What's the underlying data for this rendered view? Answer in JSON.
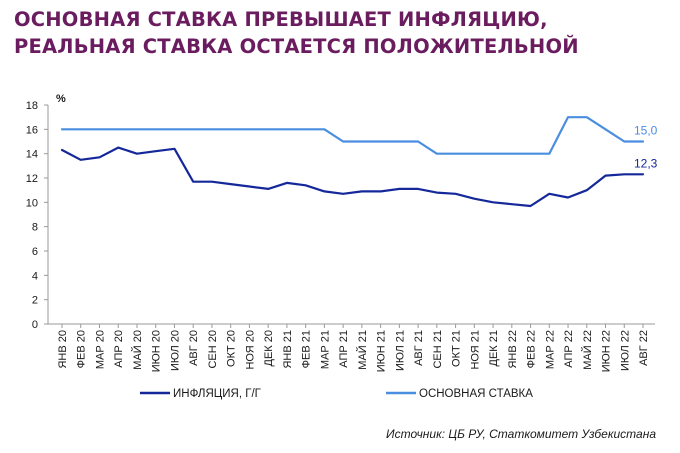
{
  "title": {
    "line1": "ОСНОВНАЯ СТАВКА ПРЕВЫШАЕТ ИНФЛЯЦИЮ,",
    "line2": "РЕАЛЬНАЯ СТАВКА ОСТАЕТСЯ ПОЛОЖИТЕЛЬНОЙ"
  },
  "source": "Источник: ЦБ РУ, Статкомитет Узбекистана",
  "colors": {
    "title": "#6a1c5f",
    "inflation": "#14289a",
    "rate": "#4a8ee0"
  },
  "chart_data": {
    "type": "line",
    "ylabel": "%",
    "ylim": [
      0,
      18
    ],
    "yticks": [
      0,
      2,
      4,
      6,
      8,
      10,
      12,
      14,
      16,
      18
    ],
    "grid": false,
    "legend_position": "bottom",
    "categories": [
      "ЯНВ 20",
      "ФЕВ 20",
      "МАР 20",
      "АПР 20",
      "МАЙ 20",
      "ИЮН 20",
      "ИЮЛ 20",
      "АВГ 20",
      "СЕН 20",
      "ОКТ 20",
      "НОЯ 20",
      "ДЕК 20",
      "ЯНВ 21",
      "ФЕВ 21",
      "МАР 21",
      "АПР 21",
      "МАЙ 21",
      "ИЮН 21",
      "ИЮЛ 21",
      "АВГ 21",
      "СЕН 21",
      "ОКТ 21",
      "НОЯ 21",
      "ДЕК 21",
      "ЯНВ 22",
      "ФЕВ 22",
      "МАР 22",
      "АПР 22",
      "МАЙ 22",
      "ИЮН 22",
      "ИЮЛ 22",
      "АВГ 22"
    ],
    "series": [
      {
        "name": "ИНФЛЯЦИЯ, Г/Г",
        "color": "#14289a",
        "end_label": "12,3",
        "values": [
          14.3,
          13.5,
          13.7,
          14.5,
          14.0,
          14.2,
          14.4,
          11.7,
          11.7,
          11.5,
          11.3,
          11.1,
          11.6,
          11.4,
          10.9,
          10.7,
          10.9,
          10.9,
          11.1,
          11.1,
          10.8,
          10.7,
          10.3,
          10.0,
          9.85,
          9.7,
          10.7,
          10.4,
          11.0,
          12.2,
          12.3,
          12.3
        ]
      },
      {
        "name": "ОСНОВНАЯ СТАВКА",
        "color": "#4a8ee0",
        "end_label": "15,0",
        "values": [
          16,
          16,
          16,
          16,
          16,
          16,
          16,
          16,
          16,
          16,
          16,
          16,
          16,
          16,
          16,
          15,
          15,
          15,
          15,
          15,
          14,
          14,
          14,
          14,
          14,
          14,
          14,
          17,
          17,
          16,
          15,
          15
        ]
      }
    ]
  }
}
